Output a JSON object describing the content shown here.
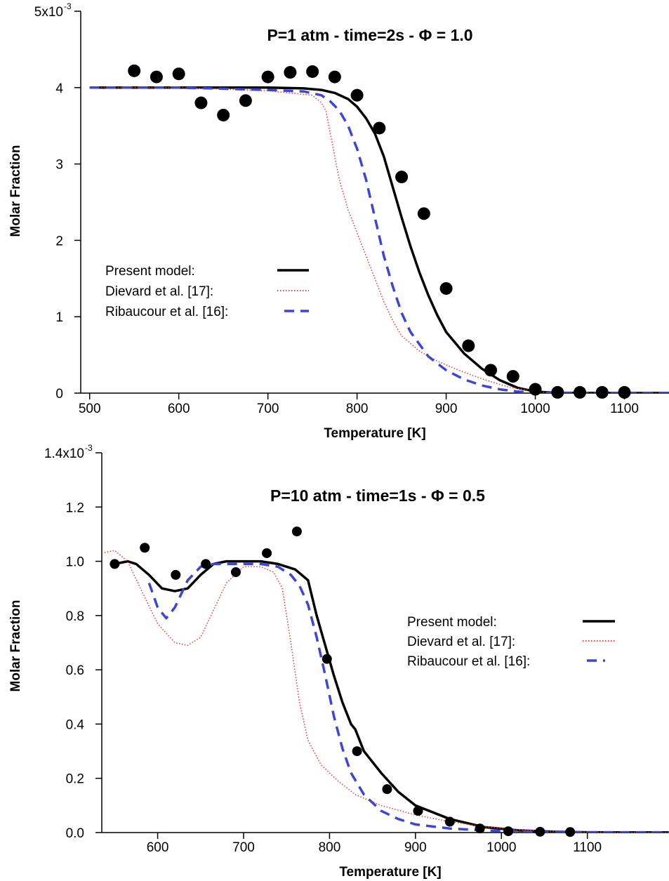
{
  "chart_data": [
    {
      "type": "line",
      "title": "P=1 atm - time=2s - Φ = 1.0",
      "xlabel": "Temperature [K]",
      "ylabel": "Molar Fraction",
      "xlim": [
        490,
        1150
      ],
      "ylim": [
        0,
        0.005
      ],
      "x_ticks": [
        "500",
        "600",
        "700",
        "800",
        "900",
        "1000",
        "1100"
      ],
      "y_ticks": [
        "0",
        "1",
        "2",
        "3",
        "4",
        "5x10"
      ],
      "y_exponent": "-3",
      "legend_position": "middle-left",
      "legend": [
        "Present model:",
        "Dievard et al. [17]:",
        "Ribaucour et al. [16]:"
      ],
      "series": [
        {
          "name": "Present model:",
          "style": "solid",
          "color": "#000000",
          "x": [
            500,
            600,
            700,
            740,
            760,
            775,
            790,
            800,
            810,
            820,
            830,
            840,
            850,
            860,
            870,
            880,
            890,
            900,
            920,
            940,
            960,
            980,
            1000,
            1020,
            1050,
            1100,
            1150
          ],
          "y": [
            0.004,
            0.004,
            0.004,
            0.00399,
            0.00397,
            0.00393,
            0.00385,
            0.00375,
            0.0036,
            0.0034,
            0.0031,
            0.0027,
            0.0023,
            0.00192,
            0.00158,
            0.00128,
            0.00102,
            0.0008,
            0.00052,
            0.00032,
            0.00017,
            7e-05,
            2e-05,
            5e-06,
            1.5e-06,
            1e-06,
            1e-06
          ]
        },
        {
          "name": "Dievard et al. [17]:",
          "style": "dotted",
          "color": "#e8403a",
          "x": [
            500,
            600,
            700,
            750,
            760,
            765,
            770,
            780,
            790,
            800,
            810,
            820,
            830,
            840,
            850,
            870,
            890,
            910,
            930,
            950,
            970,
            990,
            1010,
            1050,
            1100,
            1150
          ],
          "y": [
            0.004,
            0.004,
            0.00396,
            0.0039,
            0.0038,
            0.0037,
            0.0034,
            0.0028,
            0.0024,
            0.0021,
            0.0018,
            0.0015,
            0.0012,
            0.00095,
            0.00075,
            0.00055,
            0.00042,
            0.00032,
            0.00023,
            0.00015,
            8e-05,
            4e-05,
            1e-05,
            2e-07,
            1e-07,
            1e-07
          ]
        },
        {
          "name": "Ribaucour et al. [16]:",
          "style": "dashed",
          "color": "#3b46d8",
          "x": [
            500,
            600,
            700,
            740,
            760,
            770,
            780,
            790,
            800,
            810,
            820,
            830,
            840,
            850,
            860,
            880,
            900,
            920,
            940,
            960,
            980,
            1000,
            1020,
            1050,
            1100,
            1150
          ],
          "y": [
            0.004,
            0.004,
            0.00397,
            0.00395,
            0.0039,
            0.00382,
            0.0037,
            0.0035,
            0.0032,
            0.0028,
            0.0023,
            0.0018,
            0.0014,
            0.00105,
            0.0008,
            0.00048,
            0.0003,
            0.00018,
            0.0001,
            5e-05,
            2e-05,
            5e-06,
            1e-06,
            2e-07,
            1e-07,
            1e-07
          ]
        }
      ],
      "experiment": {
        "x": [
          550,
          575,
          600,
          625,
          650,
          675,
          700,
          725,
          750,
          775,
          800,
          825,
          850,
          875,
          900,
          925,
          950,
          975,
          1000,
          1025,
          1050,
          1075,
          1100
        ],
        "y": [
          0.00422,
          0.00414,
          0.00418,
          0.0038,
          0.00364,
          0.00383,
          0.00414,
          0.0042,
          0.00421,
          0.00414,
          0.0039,
          0.00347,
          0.00283,
          0.00235,
          0.00137,
          0.00062,
          0.0003,
          0.00022,
          5e-05,
          1e-05,
          1e-05,
          1e-05,
          1e-05
        ]
      }
    },
    {
      "type": "line",
      "title": "P=10 atm - time=1s - Φ = 0.5",
      "xlabel": "Temperature [K]",
      "ylabel": "Molar Fraction",
      "xlim": [
        535,
        1195
      ],
      "ylim": [
        0,
        0.0014
      ],
      "x_ticks": [
        "600",
        "700",
        "800",
        "900",
        "1000",
        "1100"
      ],
      "y_ticks": [
        "0.0",
        "0.2",
        "0.4",
        "0.6",
        "0.8",
        "1.0",
        "1.2",
        "1.4x10"
      ],
      "y_exponent": "-3",
      "legend_position": "middle-right",
      "legend": [
        "Present model:",
        "Dievard et al. [17]:",
        "Ribaucour et al. [16]:"
      ],
      "series": [
        {
          "name": "Present model:",
          "style": "solid",
          "color": "#000000",
          "x": [
            550,
            565,
            575,
            590,
            605,
            620,
            635,
            650,
            665,
            680,
            700,
            720,
            740,
            760,
            775,
            785,
            795,
            805,
            815,
            825,
            830,
            840,
            860,
            880,
            900,
            940,
            980,
            1020,
            1060,
            1100,
            1150,
            1195
          ],
          "y": [
            0.00099,
            0.001,
            0.00099,
            0.00095,
            0.0009,
            0.00089,
            0.0009,
            0.00095,
            0.00099,
            0.001,
            0.001,
            0.001,
            0.00099,
            0.00097,
            0.00093,
            0.0008,
            0.00069,
            0.00058,
            0.00048,
            0.0004,
            0.00038,
            0.0003,
            0.00022,
            0.00015,
            0.0001,
            5e-05,
            2e-05,
            8e-06,
            3e-06,
            1e-06,
            5e-07,
            5e-07
          ]
        },
        {
          "name": "Dievard et al. [17]:",
          "style": "dotted",
          "color": "#e8403a",
          "x": [
            535,
            550,
            565,
            580,
            600,
            620,
            635,
            650,
            665,
            680,
            700,
            720,
            735,
            745,
            755,
            765,
            775,
            790,
            810,
            830,
            860,
            900,
            940,
            980,
            1020,
            1060,
            1100,
            1150,
            1195
          ],
          "y": [
            0.00103,
            0.00104,
            0.001,
            0.0009,
            0.00077,
            0.0007,
            0.00069,
            0.00072,
            0.00082,
            0.00092,
            0.00098,
            0.00098,
            0.00096,
            0.0009,
            0.0007,
            0.00048,
            0.00034,
            0.00025,
            0.00019,
            0.00014,
            0.0001,
            6.5e-05,
            4e-05,
            2.2e-05,
            1e-05,
            4e-06,
            2e-06,
            1e-06,
            1e-06
          ]
        },
        {
          "name": "Ribaucour et al. [16]:",
          "style": "dashed",
          "color": "#3b46d8",
          "x": [
            590,
            600,
            610,
            620,
            635,
            650,
            665,
            680,
            700,
            720,
            740,
            755,
            765,
            775,
            785,
            795,
            805,
            815,
            825,
            840,
            860,
            880,
            900,
            940,
            980,
            1020,
            1060,
            1100,
            1150,
            1195
          ],
          "y": [
            0.00092,
            0.00083,
            0.00079,
            0.00083,
            0.00093,
            0.00098,
            0.00099,
            0.00099,
            0.00099,
            0.00099,
            0.00098,
            0.00095,
            0.00091,
            0.00084,
            0.00072,
            0.00058,
            0.00043,
            0.00031,
            0.00022,
            0.00014,
            8e-05,
            5e-05,
            3e-05,
            1.5e-05,
            8e-06,
            4e-06,
            2e-06,
            1e-06,
            1e-06,
            1e-06
          ]
        }
      ],
      "experiment": {
        "x": [
          550,
          585,
          621,
          656,
          691,
          727,
          762,
          797,
          832,
          867,
          903,
          940,
          975,
          1008,
          1045,
          1080
        ],
        "y": [
          0.00099,
          0.00105,
          0.00095,
          0.00099,
          0.00096,
          0.00103,
          0.00111,
          0.00064,
          0.0003,
          0.00016,
          8e-05,
          4e-05,
          1.5e-05,
          5e-06,
          3e-06,
          2e-06
        ]
      }
    }
  ]
}
